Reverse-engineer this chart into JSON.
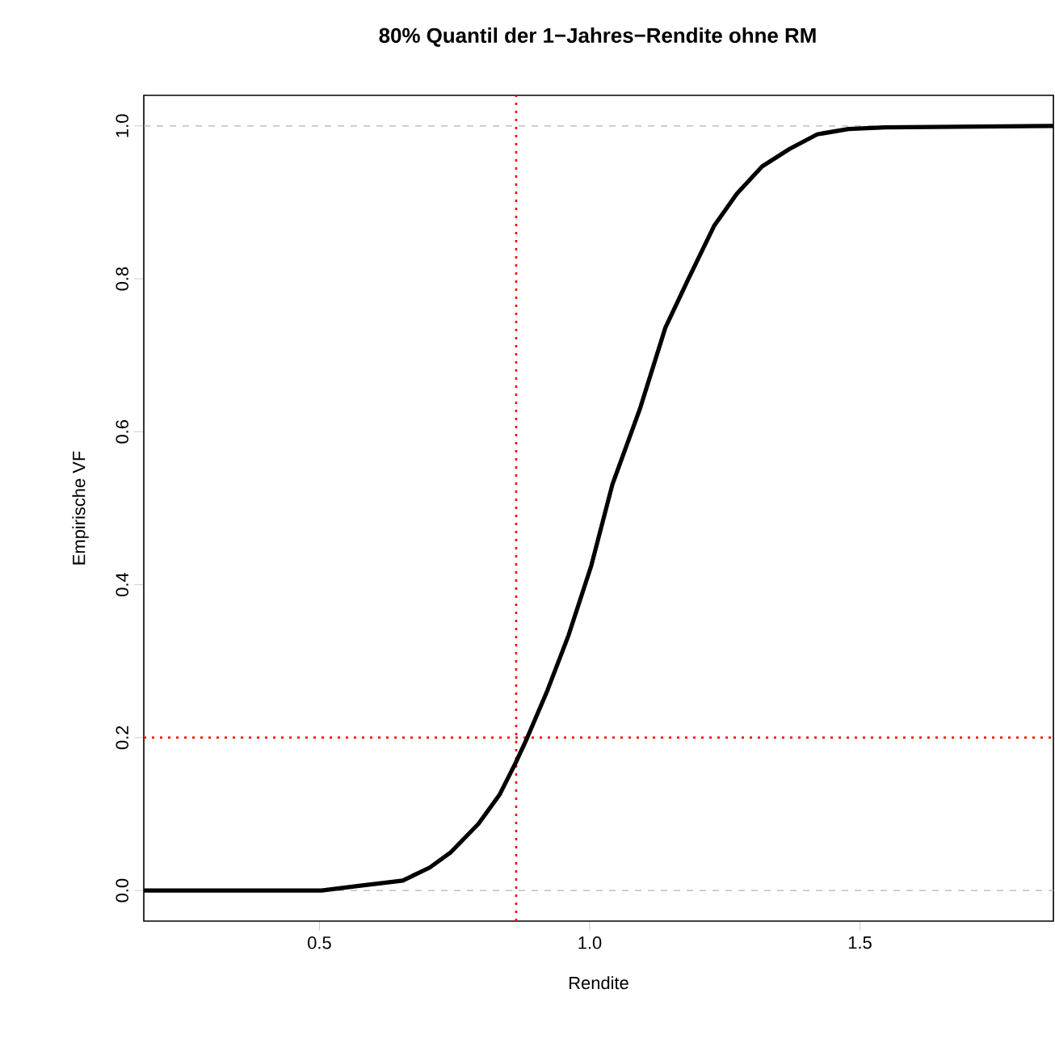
{
  "chart_data": {
    "type": "line",
    "title": "80% Quantil der 1−Jahres−Rendite ohne RM",
    "xlabel": "Rendite",
    "ylabel": "Empirische VF",
    "series": [
      {
        "color": "#000000",
        "x": [
          0.175,
          0.504,
          0.573,
          0.654,
          0.704,
          0.743,
          0.794,
          0.833,
          0.863,
          0.884,
          0.922,
          0.961,
          1.003,
          1.042,
          1.093,
          1.14,
          1.182,
          1.23,
          1.272,
          1.319,
          1.37,
          1.421,
          1.479,
          1.548,
          1.858
        ],
        "values": [
          0,
          0,
          0.006,
          0.013,
          0.03,
          0.05,
          0.087,
          0.125,
          0.167,
          0.199,
          0.262,
          0.334,
          0.425,
          0.531,
          0.63,
          0.736,
          0.799,
          0.869,
          0.911,
          0.947,
          0.97,
          0.989,
          0.996,
          0.998,
          1
        ]
      }
    ],
    "xlim": [
      0.175,
      1.858
    ],
    "ylim": [
      -0.04,
      1.04
    ],
    "xticks": [
      {
        "value": 0.5,
        "label": "0.5"
      },
      {
        "value": 1.0,
        "label": "1.0"
      },
      {
        "value": 1.5,
        "label": "1.5"
      }
    ],
    "yticks": [
      {
        "value": 0,
        "label": "0.0"
      },
      {
        "value": 0.2,
        "label": "0.2"
      },
      {
        "value": 0.4,
        "label": "0.4"
      },
      {
        "value": 0.6,
        "label": "0.6"
      },
      {
        "value": 0.8,
        "label": "0.8"
      },
      {
        "value": 1.0,
        "label": "1.0"
      }
    ],
    "ref_lines": [
      {
        "axis": "y",
        "value": 0,
        "color": "#b3b3b3",
        "line_style": "dashed"
      },
      {
        "axis": "y",
        "value": 1,
        "color": "#b3b3b3",
        "line_style": "dashed"
      },
      {
        "axis": "x",
        "value": 0.864,
        "color": "#ff0000",
        "line_style": "dotted"
      },
      {
        "axis": "y",
        "value": 0.2,
        "color": "#ff0000",
        "line_style": "dotted"
      }
    ],
    "grid": false,
    "marker": "none",
    "line_style": "solid"
  }
}
